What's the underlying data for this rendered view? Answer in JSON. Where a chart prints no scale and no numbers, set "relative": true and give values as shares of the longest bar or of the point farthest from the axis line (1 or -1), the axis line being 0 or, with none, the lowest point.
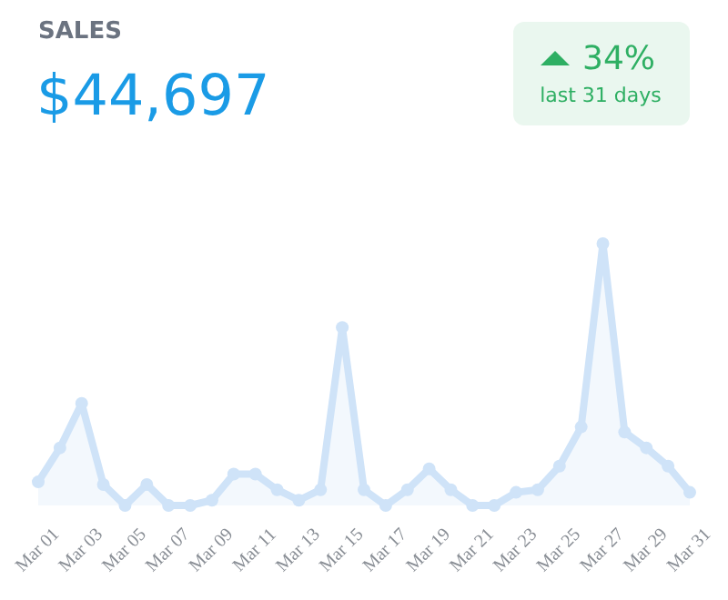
{
  "chart_data": {
    "type": "area",
    "title": "SALES",
    "subtitle": "$44,697",
    "annotations": [
      "34%",
      "last 31 days"
    ],
    "relative": true,
    "marker": "circle",
    "tick_labels": "x",
    "categories": [
      "Mar 01",
      null,
      "Mar 03",
      null,
      "Mar 05",
      null,
      "Mar 07",
      null,
      "Mar 09",
      null,
      "Mar 11",
      null,
      "Mar 13",
      null,
      "Mar 15",
      null,
      "Mar 17",
      null,
      "Mar 19",
      null,
      "Mar 21",
      null,
      "Mar 23",
      null,
      "Mar 25",
      null,
      "Mar 27",
      null,
      "Mar 29",
      null,
      "Mar 31"
    ],
    "series": [
      {
        "color": "#cfe3f8",
        "values": [
          0.09,
          0.22,
          0.39,
          0.08,
          0,
          0.08,
          0,
          0,
          0.02,
          0.12,
          0.12,
          0.06,
          0.02,
          0.06,
          0.68,
          0.06,
          0,
          0.06,
          0.14,
          0.06,
          0,
          0,
          0.05,
          0.06,
          0.15,
          0.3,
          1,
          0.28,
          0.22,
          0.15,
          0.05
        ]
      }
    ]
  }
}
